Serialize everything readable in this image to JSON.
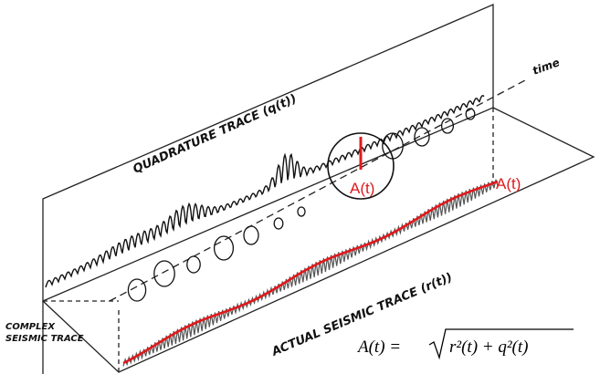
{
  "labels": {
    "quadrature": "QUADRATURE TRACE (q(t))",
    "time": "time",
    "amplitude_top": "A(t)",
    "amplitude_right": "A(t)",
    "complex_line1": "COMPLEX",
    "complex_line2": "SEISMIC TRACE",
    "actual": "ACTUAL SEISMIC TRACE (r(t))"
  },
  "formula": {
    "lhs": "A(t) =",
    "radicand": "r²(t) + q²(t)"
  }
}
